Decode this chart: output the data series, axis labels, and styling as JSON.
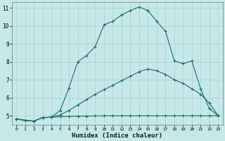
{
  "xlabel": "Humidex (Indice chaleur)",
  "background_color": "#c5e8e8",
  "grid_color": "#aad0d0",
  "line_color": "#1a6b6b",
  "xlim": [
    -0.5,
    23.5
  ],
  "ylim": [
    4.5,
    11.3
  ],
  "xticks": [
    0,
    1,
    2,
    3,
    4,
    5,
    6,
    7,
    8,
    9,
    10,
    11,
    12,
    13,
    14,
    15,
    16,
    17,
    18,
    19,
    20,
    21,
    22,
    23
  ],
  "yticks": [
    5,
    6,
    7,
    8,
    9,
    10,
    11
  ],
  "line1_x": [
    0,
    1,
    2,
    3,
    4,
    5,
    6,
    7,
    8,
    9,
    10,
    11,
    12,
    13,
    14,
    15,
    16,
    17,
    18,
    19,
    20,
    21,
    22,
    23
  ],
  "line1_y": [
    4.82,
    4.73,
    4.7,
    4.9,
    4.92,
    4.95,
    4.97,
    4.98,
    4.98,
    4.99,
    5.0,
    5.0,
    5.0,
    5.0,
    5.0,
    5.0,
    5.0,
    5.0,
    5.0,
    5.0,
    5.0,
    5.0,
    5.0,
    5.0
  ],
  "line2_x": [
    0,
    2,
    3,
    4,
    5,
    6,
    7,
    8,
    9,
    10,
    11,
    12,
    13,
    14,
    15,
    16,
    17,
    18,
    19,
    20,
    21,
    22,
    23
  ],
  "line2_y": [
    4.82,
    4.7,
    4.9,
    4.92,
    5.05,
    5.3,
    5.6,
    5.9,
    6.2,
    6.45,
    6.7,
    6.95,
    7.2,
    7.45,
    7.6,
    7.5,
    7.3,
    7.0,
    6.8,
    6.5,
    6.2,
    5.7,
    5.0
  ],
  "line3_x": [
    0,
    2,
    3,
    4,
    5,
    6,
    7,
    8,
    9,
    10,
    11,
    12,
    13,
    14,
    15,
    16,
    17,
    18,
    19,
    20,
    21,
    22,
    23
  ],
  "line3_y": [
    4.82,
    4.7,
    4.9,
    4.92,
    5.3,
    6.55,
    8.0,
    8.35,
    8.85,
    10.05,
    10.25,
    10.6,
    10.85,
    11.05,
    10.85,
    10.25,
    9.7,
    8.05,
    7.9,
    8.05,
    6.5,
    5.4,
    5.0
  ],
  "figsize": [
    3.2,
    2.0
  ],
  "dpi": 100
}
